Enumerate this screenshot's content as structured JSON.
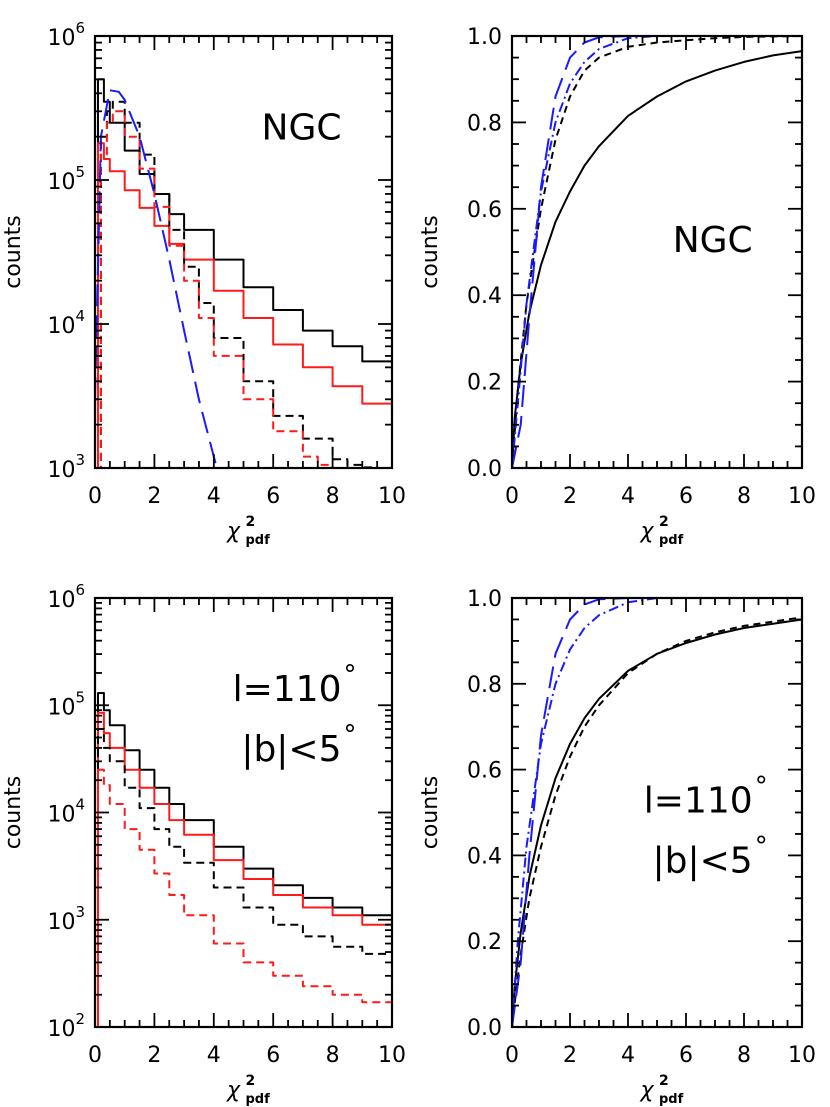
{
  "figure": {
    "background": "#ffffff"
  },
  "colors": {
    "black": "#000000",
    "red": "#ff1a1a",
    "blue": "#1a1aff"
  },
  "chart_data": [
    {
      "id": "tl",
      "type": "line",
      "scale": "log",
      "xlabel": "χ",
      "xlabel_sup": "2",
      "xlabel_sub": "pdf",
      "ylabel": "counts",
      "xlim": [
        0,
        10
      ],
      "ylim_exp": [
        3,
        6
      ],
      "x_ticks": [
        0,
        2,
        4,
        6,
        8,
        10
      ],
      "x_tick_labels": [
        "0",
        "2",
        "4",
        "6",
        "8",
        "10"
      ],
      "y_ticks_exp": [
        3,
        4,
        5,
        6
      ],
      "y_tick_labels": [
        {
          "base": "10",
          "exp": "3"
        },
        {
          "base": "10",
          "exp": "4"
        },
        {
          "base": "10",
          "exp": "5"
        },
        {
          "base": "10",
          "exp": "6"
        }
      ],
      "annotations": [
        {
          "text": "NGC",
          "pos": "upper-right"
        }
      ],
      "series": [
        {
          "name": "black-solid",
          "color": "#000000",
          "dash": "solid",
          "step": true,
          "x": [
            0,
            0.1,
            0.3,
            0.5,
            1,
            1.5,
            2,
            2.5,
            3,
            4,
            5,
            6,
            7,
            8,
            9,
            10
          ],
          "y": [
            3000,
            500000,
            350000,
            250000,
            160000,
            110000,
            80000,
            58000,
            45000,
            28000,
            18000,
            12500,
            9000,
            7000,
            5500,
            4200
          ]
        },
        {
          "name": "red-solid",
          "color": "#ff1a1a",
          "dash": "solid",
          "step": true,
          "x": [
            0,
            0.1,
            0.3,
            0.5,
            1,
            1.5,
            2,
            2.5,
            3,
            4,
            5,
            6,
            7,
            8,
            9,
            10
          ],
          "y": [
            1000,
            180000,
            140000,
            115000,
            85000,
            64000,
            48000,
            36000,
            28000,
            17000,
            11000,
            7200,
            5000,
            3700,
            2800,
            2100
          ]
        },
        {
          "name": "black-dashed",
          "color": "#000000",
          "dash": "8,5",
          "step": true,
          "x": [
            0,
            0.2,
            0.4,
            0.6,
            1,
            1.5,
            2,
            2.5,
            3,
            3.5,
            4,
            5,
            6,
            7,
            8,
            8.5,
            9,
            9.5
          ],
          "y": [
            1000,
            200000,
            300000,
            350000,
            250000,
            150000,
            80000,
            45000,
            25000,
            14000,
            8000,
            4000,
            2300,
            1600,
            1150,
            1050,
            1010,
            1000
          ]
        },
        {
          "name": "red-dashed",
          "color": "#ff1a1a",
          "dash": "8,5",
          "step": true,
          "x": [
            0,
            0.2,
            0.4,
            0.6,
            1,
            1.5,
            2,
            2.5,
            3,
            3.5,
            4,
            5,
            6,
            7,
            7.5,
            8
          ],
          "y": [
            1000,
            150000,
            250000,
            300000,
            200000,
            120000,
            65000,
            35000,
            20000,
            11000,
            6000,
            3000,
            1800,
            1200,
            1050,
            1000
          ]
        },
        {
          "name": "blue-long-dash",
          "color": "#1a1aff",
          "dash": "22,9",
          "step": false,
          "x": [
            0,
            0.2,
            0.5,
            0.8,
            1,
            1.5,
            2,
            2.5,
            3,
            3.5,
            4,
            4.1
          ],
          "y": [
            3000,
            200000,
            420000,
            410000,
            360000,
            200000,
            80000,
            28000,
            9000,
            3000,
            1200,
            1000
          ]
        }
      ]
    },
    {
      "id": "tr",
      "type": "line",
      "scale": "linear",
      "xlabel": "χ",
      "xlabel_sup": "2",
      "xlabel_sub": "pdf",
      "ylabel": "counts",
      "xlim": [
        0,
        10
      ],
      "ylim": [
        0,
        1
      ],
      "x_ticks": [
        0,
        2,
        4,
        6,
        8,
        10
      ],
      "x_tick_labels": [
        "0",
        "2",
        "4",
        "6",
        "8",
        "10"
      ],
      "y_ticks": [
        0,
        0.2,
        0.4,
        0.6,
        0.8,
        1.0
      ],
      "y_tick_labels": [
        "0.0",
        "0.2",
        "0.4",
        "0.6",
        "0.8",
        "1.0"
      ],
      "annotations": [
        {
          "text": "NGC",
          "pos": "middle-right"
        }
      ],
      "series": [
        {
          "name": "black-solid",
          "color": "#000000",
          "dash": "solid",
          "step": false,
          "x": [
            0,
            0.1,
            0.3,
            0.6,
            1,
            1.5,
            2,
            2.5,
            3,
            4,
            5,
            6,
            7,
            8,
            9,
            10
          ],
          "y": [
            0,
            0.12,
            0.24,
            0.36,
            0.47,
            0.57,
            0.64,
            0.7,
            0.745,
            0.815,
            0.86,
            0.895,
            0.92,
            0.94,
            0.955,
            0.965
          ]
        },
        {
          "name": "black-dashed",
          "color": "#000000",
          "dash": "7,5",
          "step": false,
          "x": [
            0,
            0.2,
            0.5,
            1,
            1.5,
            2,
            2.5,
            3,
            4,
            5,
            6,
            7,
            8,
            10
          ],
          "y": [
            0,
            0.18,
            0.38,
            0.6,
            0.76,
            0.86,
            0.92,
            0.95,
            0.975,
            0.985,
            0.99,
            0.995,
            0.998,
            1.0
          ]
        },
        {
          "name": "blue-dashdot",
          "color": "#1a1aff",
          "dash": "10,4,2,4",
          "step": false,
          "x": [
            0,
            0.2,
            0.5,
            1,
            1.5,
            2,
            2.5,
            3,
            4,
            5,
            10
          ],
          "y": [
            0,
            0.15,
            0.38,
            0.64,
            0.8,
            0.89,
            0.94,
            0.97,
            0.995,
            1.0,
            1.0
          ]
        },
        {
          "name": "blue-long-dash",
          "color": "#1a1aff",
          "dash": "22,9",
          "step": false,
          "x": [
            0,
            0.3,
            0.6,
            1,
            1.5,
            2,
            2.5,
            3,
            4,
            10
          ],
          "y": [
            0,
            0.1,
            0.35,
            0.65,
            0.86,
            0.95,
            0.985,
            0.997,
            1.0,
            1.0
          ]
        }
      ]
    },
    {
      "id": "bl",
      "type": "line",
      "scale": "log",
      "xlabel": "χ",
      "xlabel_sup": "2",
      "xlabel_sub": "pdf",
      "ylabel": "counts",
      "xlim": [
        0,
        10
      ],
      "ylim_exp": [
        2,
        6
      ],
      "x_ticks": [
        0,
        2,
        4,
        6,
        8,
        10
      ],
      "x_tick_labels": [
        "0",
        "2",
        "4",
        "6",
        "8",
        "10"
      ],
      "y_ticks_exp": [
        2,
        3,
        4,
        5,
        6
      ],
      "y_tick_labels": [
        {
          "base": "10",
          "exp": "2"
        },
        {
          "base": "10",
          "exp": "3"
        },
        {
          "base": "10",
          "exp": "4"
        },
        {
          "base": "10",
          "exp": "5"
        },
        {
          "base": "10",
          "exp": "6"
        }
      ],
      "annotations": [
        {
          "text": "l=110",
          "sup": "°",
          "pos": "upper-right"
        },
        {
          "text": "|b|<5",
          "sup": "°",
          "pos": "upper-right-2"
        }
      ],
      "series": [
        {
          "name": "black-solid",
          "color": "#000000",
          "dash": "solid",
          "step": true,
          "x": [
            0,
            0.1,
            0.3,
            0.5,
            1,
            1.5,
            2,
            2.5,
            3,
            4,
            5,
            6,
            7,
            8,
            9,
            10
          ],
          "y": [
            100,
            130000,
            90000,
            65000,
            38000,
            25000,
            17000,
            12000,
            8500,
            4800,
            3000,
            2100,
            1600,
            1300,
            1100,
            900
          ]
        },
        {
          "name": "red-solid",
          "color": "#ff1a1a",
          "dash": "solid",
          "step": true,
          "x": [
            0,
            0.1,
            0.3,
            0.5,
            1,
            1.5,
            2,
            2.5,
            3,
            4,
            5,
            6,
            7,
            8,
            9,
            10
          ],
          "y": [
            100,
            85000,
            55000,
            40000,
            25000,
            17000,
            12000,
            8500,
            6200,
            3600,
            2400,
            1700,
            1300,
            1100,
            900,
            750
          ]
        },
        {
          "name": "black-dashed",
          "color": "#000000",
          "dash": "8,5",
          "step": true,
          "x": [
            0,
            0.1,
            0.3,
            0.5,
            1,
            1.5,
            2,
            2.5,
            3,
            4,
            5,
            6,
            7,
            8,
            9,
            10
          ],
          "y": [
            100,
            60000,
            40000,
            30000,
            17000,
            11000,
            7000,
            4800,
            3400,
            2000,
            1300,
            900,
            700,
            560,
            480,
            400
          ]
        },
        {
          "name": "red-dashed",
          "color": "#ff1a1a",
          "dash": "8,5",
          "step": true,
          "x": [
            0,
            0.1,
            0.3,
            0.5,
            1,
            1.5,
            2,
            2.5,
            3,
            4,
            5,
            6,
            7,
            8,
            9,
            10
          ],
          "y": [
            100,
            25000,
            18000,
            12000,
            7000,
            4500,
            2700,
            1700,
            1100,
            600,
            400,
            300,
            240,
            200,
            170,
            140
          ]
        }
      ]
    },
    {
      "id": "br",
      "type": "line",
      "scale": "linear",
      "xlabel": "χ",
      "xlabel_sup": "2",
      "xlabel_sub": "pdf",
      "ylabel": "counts",
      "xlim": [
        0,
        10
      ],
      "ylim": [
        0,
        1
      ],
      "x_ticks": [
        0,
        2,
        4,
        6,
        8,
        10
      ],
      "x_tick_labels": [
        "0",
        "2",
        "4",
        "6",
        "8",
        "10"
      ],
      "y_ticks": [
        0,
        0.2,
        0.4,
        0.6,
        0.8,
        1.0
      ],
      "y_tick_labels": [
        "0.0",
        "0.2",
        "0.4",
        "0.6",
        "0.8",
        "1.0"
      ],
      "annotations": [
        {
          "text": "l=110",
          "sup": "°",
          "pos": "middle-right"
        },
        {
          "text": "|b|<5",
          "sup": "°",
          "pos": "middle-right-2"
        }
      ],
      "series": [
        {
          "name": "black-solid",
          "color": "#000000",
          "dash": "solid",
          "step": false,
          "x": [
            0,
            0.1,
            0.3,
            0.6,
            1,
            1.5,
            2,
            2.5,
            3,
            4,
            5,
            6,
            7,
            8,
            9,
            10
          ],
          "y": [
            0,
            0.1,
            0.22,
            0.35,
            0.47,
            0.58,
            0.66,
            0.72,
            0.765,
            0.83,
            0.87,
            0.895,
            0.915,
            0.93,
            0.94,
            0.95
          ]
        },
        {
          "name": "black-dashed",
          "color": "#000000",
          "dash": "7,5",
          "step": false,
          "x": [
            0,
            0.1,
            0.3,
            0.6,
            1,
            1.5,
            2,
            2.5,
            3,
            4,
            5,
            6,
            7,
            8,
            9,
            10
          ],
          "y": [
            0,
            0.06,
            0.17,
            0.3,
            0.42,
            0.54,
            0.63,
            0.7,
            0.75,
            0.825,
            0.87,
            0.9,
            0.92,
            0.935,
            0.945,
            0.955
          ]
        },
        {
          "name": "blue-dashdot",
          "color": "#1a1aff",
          "dash": "10,4,2,4",
          "step": false,
          "x": [
            0,
            0.2,
            0.5,
            1,
            1.5,
            2,
            2.5,
            3,
            4,
            5,
            10
          ],
          "y": [
            0,
            0.2,
            0.42,
            0.66,
            0.8,
            0.88,
            0.93,
            0.96,
            0.99,
            1.0,
            1.0
          ]
        },
        {
          "name": "blue-long-dash",
          "color": "#1a1aff",
          "dash": "22,9",
          "step": false,
          "x": [
            0,
            0.3,
            0.6,
            1,
            1.5,
            2,
            2.5,
            3,
            4,
            10
          ],
          "y": [
            0,
            0.15,
            0.4,
            0.68,
            0.87,
            0.95,
            0.985,
            0.997,
            1.0,
            1.0
          ]
        }
      ]
    }
  ]
}
